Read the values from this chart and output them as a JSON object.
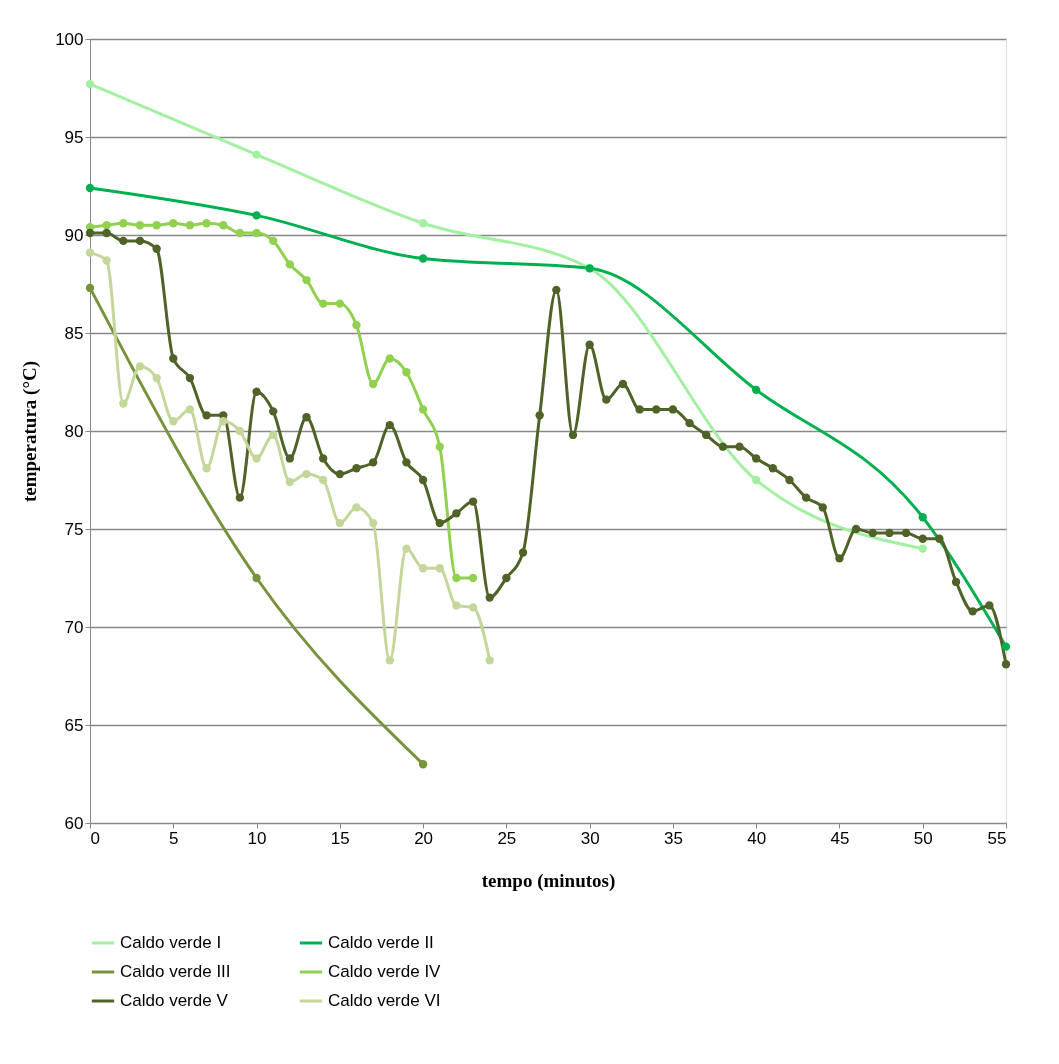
{
  "chart_data": {
    "type": "line",
    "xlabel": "tempo (minutos)",
    "ylabel": "temperatura (°C)",
    "xlim": [
      0,
      55
    ],
    "xticks": [
      0,
      5,
      10,
      15,
      20,
      25,
      30,
      35,
      40,
      45,
      50,
      55
    ],
    "ylim": [
      60,
      100
    ],
    "yticks": [
      60,
      65,
      70,
      75,
      80,
      85,
      90,
      95,
      100
    ],
    "grid": "y",
    "legend": "bottom",
    "marker": "circle",
    "line_style": "solid",
    "series": [
      {
        "name": "Caldo verde I",
        "color": "#a3f0a3",
        "x": [
          0,
          10,
          20,
          30,
          40,
          50
        ],
        "values": [
          97.7,
          94.1,
          90.6,
          88.3,
          77.5,
          74.0
        ]
      },
      {
        "name": "Caldo verde II",
        "color": "#00b050",
        "x": [
          0,
          10,
          20,
          30,
          40,
          50,
          55
        ],
        "values": [
          92.4,
          91.0,
          88.8,
          88.3,
          82.1,
          75.6,
          69.0
        ]
      },
      {
        "name": "Caldo verde III",
        "color": "#77933c",
        "x": [
          0,
          10,
          20
        ],
        "values": [
          87.3,
          72.5,
          63.0
        ]
      },
      {
        "name": "Caldo verde IV",
        "color": "#92d050",
        "x": [
          0,
          1,
          2,
          3,
          4,
          5,
          6,
          7,
          8,
          9,
          10,
          11,
          12,
          13,
          14,
          15,
          16,
          17,
          18,
          19,
          20,
          21,
          22,
          23
        ],
        "values": [
          90.4,
          90.5,
          90.6,
          90.5,
          90.5,
          90.6,
          90.5,
          90.6,
          90.5,
          90.1,
          90.1,
          89.7,
          88.5,
          87.7,
          86.5,
          86.5,
          85.4,
          82.4,
          83.7,
          83.0,
          81.1,
          79.2,
          72.5,
          72.5
        ]
      },
      {
        "name": "Caldo verde  V",
        "color": "#4f6228",
        "x": [
          0,
          1,
          2,
          3,
          4,
          5,
          6,
          7,
          8,
          9,
          10,
          11,
          12,
          13,
          14,
          15,
          16,
          17,
          18,
          19,
          20,
          21,
          22,
          23,
          24,
          25,
          26,
          27,
          28,
          29,
          30,
          31,
          32,
          33,
          34,
          35,
          36,
          37,
          38,
          39,
          40,
          41,
          42,
          43,
          44,
          45,
          46,
          47,
          48,
          49,
          50,
          51,
          52,
          53,
          54,
          55
        ],
        "values": [
          90.1,
          90.1,
          89.7,
          89.7,
          89.3,
          83.7,
          82.7,
          80.8,
          80.8,
          76.6,
          82.0,
          81.0,
          78.6,
          80.7,
          78.6,
          77.8,
          78.1,
          78.4,
          80.3,
          78.4,
          77.5,
          75.3,
          75.8,
          76.4,
          71.5,
          72.5,
          73.8,
          80.8,
          87.2,
          79.8,
          84.4,
          81.6,
          82.4,
          81.1,
          81.1,
          81.1,
          80.4,
          79.8,
          79.2,
          79.2,
          78.6,
          78.1,
          77.5,
          76.6,
          76.1,
          73.5,
          75.0,
          74.8,
          74.8,
          74.8,
          74.5,
          74.5,
          72.3,
          70.8,
          71.1,
          68.1
        ]
      },
      {
        "name": "Caldo verde VI",
        "color": "#c4d79b",
        "x": [
          0,
          1,
          2,
          3,
          4,
          5,
          6,
          7,
          8,
          9,
          10,
          11,
          12,
          13,
          14,
          15,
          16,
          17,
          18,
          19,
          20,
          21,
          22,
          23,
          24
        ],
        "values": [
          89.1,
          88.7,
          81.4,
          83.3,
          82.7,
          80.5,
          81.1,
          78.1,
          80.5,
          80.0,
          78.6,
          79.8,
          77.4,
          77.8,
          77.5,
          75.3,
          76.1,
          75.3,
          68.3,
          74.0,
          73.0,
          73.0,
          71.1,
          71.0,
          68.3
        ]
      }
    ]
  }
}
